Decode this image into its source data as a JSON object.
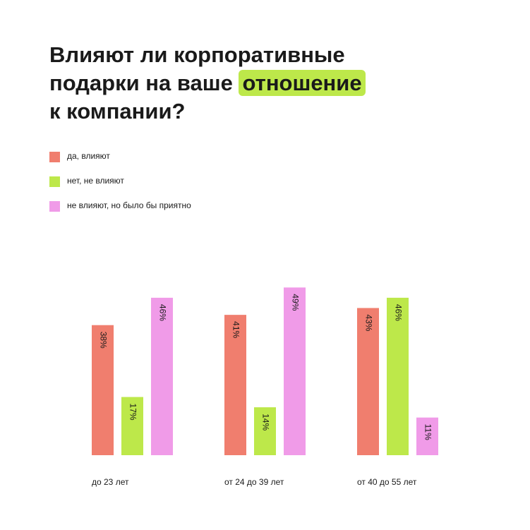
{
  "chart_data": {
    "type": "bar",
    "title_lines": [
      "Влияют ли корпоративные",
      "подарки на ваше",
      "отношение",
      "к компании?"
    ],
    "categories": [
      "до 23 лет",
      "от 24 до 39 лет",
      "от 40 до 55 лет"
    ],
    "series": [
      {
        "name": "да, влияют",
        "color": "#f07e6e",
        "values": [
          38,
          41,
          43
        ],
        "value_labels": [
          "38%",
          "41%",
          "43%"
        ]
      },
      {
        "name": "нет, не влияют",
        "color": "#bde84a",
        "values": [
          17,
          14,
          46
        ],
        "value_labels": [
          "17%",
          "14%",
          "46%"
        ]
      },
      {
        "name": "не влияют, но было бы приятно",
        "color": "#f09be8",
        "values": [
          46,
          49,
          11
        ],
        "value_labels": [
          "46%",
          "49%",
          "11%"
        ]
      }
    ]
  }
}
